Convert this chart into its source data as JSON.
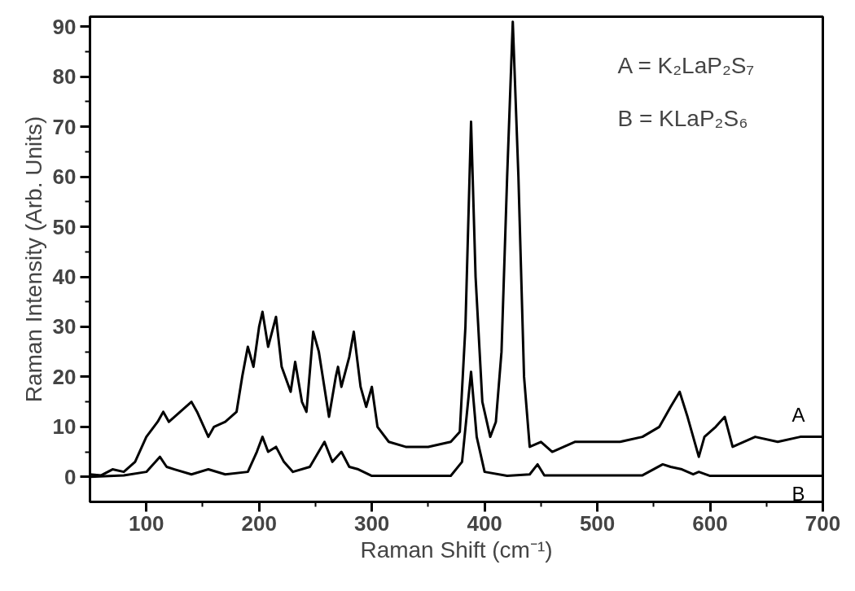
{
  "chart_data": {
    "type": "line",
    "xlabel": "Raman Shift (cm⁻¹)",
    "ylabel": "Raman Intensity (Arb. Units)",
    "xlim": [
      50,
      700
    ],
    "ylim": [
      -5,
      92
    ],
    "xticks": [
      100,
      {
        "value": 150,
        "label": null
      },
      200,
      {
        "value": 250,
        "label": null
      },
      300,
      {
        "value": 350,
        "label": null
      },
      400,
      {
        "value": 450,
        "label": null
      },
      500,
      {
        "value": 550,
        "label": null
      },
      600,
      {
        "value": 650,
        "label": null
      },
      700
    ],
    "yticks": [
      0,
      {
        "value": 5,
        "label": null
      },
      10,
      {
        "value": 15,
        "label": null
      },
      20,
      {
        "value": 25,
        "label": null
      },
      30,
      {
        "value": 35,
        "label": null
      },
      40,
      {
        "value": 45,
        "label": null
      },
      50,
      {
        "value": 55,
        "label": null
      },
      60,
      {
        "value": 65,
        "label": null
      },
      70,
      {
        "value": 75,
        "label": null
      },
      80,
      {
        "value": 85,
        "label": null
      },
      90
    ],
    "grid": false,
    "legend": false,
    "marker": "none",
    "line_style": "solid",
    "annotations": [
      "A = K₂LaP₂S₇",
      "B = KLaP₂S₆"
    ],
    "series": [
      {
        "name": "A",
        "color": "#000000",
        "x": [
          50,
          60,
          70,
          80,
          90,
          100,
          110,
          115,
          120,
          130,
          140,
          145,
          155,
          160,
          170,
          180,
          185,
          190,
          195,
          200,
          203,
          208,
          215,
          220,
          228,
          232,
          238,
          242,
          248,
          253,
          262,
          268,
          270,
          273,
          280,
          284,
          290,
          295,
          300,
          305,
          315,
          330,
          350,
          370,
          378,
          383,
          388,
          392,
          398,
          405,
          410,
          415,
          420,
          425,
          430,
          435,
          440,
          450,
          460,
          480,
          500,
          520,
          540,
          555,
          565,
          573,
          580,
          590,
          595,
          605,
          613,
          620,
          640,
          660,
          680,
          700
        ],
        "values": [
          0.5,
          0.3,
          1.5,
          1,
          3,
          8,
          11,
          13,
          11,
          13,
          15,
          13,
          8,
          10,
          11,
          13,
          20,
          26,
          22,
          30,
          33,
          26,
          32,
          22,
          17,
          23,
          15,
          13,
          29,
          25,
          12,
          20,
          22,
          18,
          24,
          29,
          18,
          14,
          18,
          10,
          7,
          6,
          6,
          7,
          9,
          30,
          71,
          40,
          15,
          8,
          11,
          25,
          60,
          91,
          60,
          20,
          6,
          7,
          5,
          7,
          7,
          7,
          8,
          10,
          14,
          17,
          12,
          4,
          8,
          10,
          12,
          6,
          8,
          7,
          8,
          8
        ]
      },
      {
        "name": "B",
        "color": "#000000",
        "x": [
          50,
          80,
          100,
          112,
          118,
          125,
          140,
          155,
          170,
          190,
          198,
          203,
          208,
          215,
          222,
          230,
          245,
          258,
          265,
          273,
          280,
          288,
          300,
          370,
          380,
          388,
          393,
          400,
          420,
          440,
          447,
          453,
          540,
          558,
          565,
          575,
          585,
          590,
          600,
          700
        ],
        "values": [
          0,
          0.3,
          1,
          4,
          2,
          1.5,
          0.5,
          1.5,
          0.5,
          1,
          5,
          8,
          5,
          6,
          3,
          1,
          2,
          7,
          3,
          5,
          2,
          1.5,
          0.2,
          0.2,
          3,
          21,
          8,
          1,
          0.2,
          0.5,
          2.5,
          0.3,
          0.3,
          2.5,
          2,
          1.5,
          0.5,
          1,
          0.2,
          0.2
        ]
      }
    ]
  }
}
